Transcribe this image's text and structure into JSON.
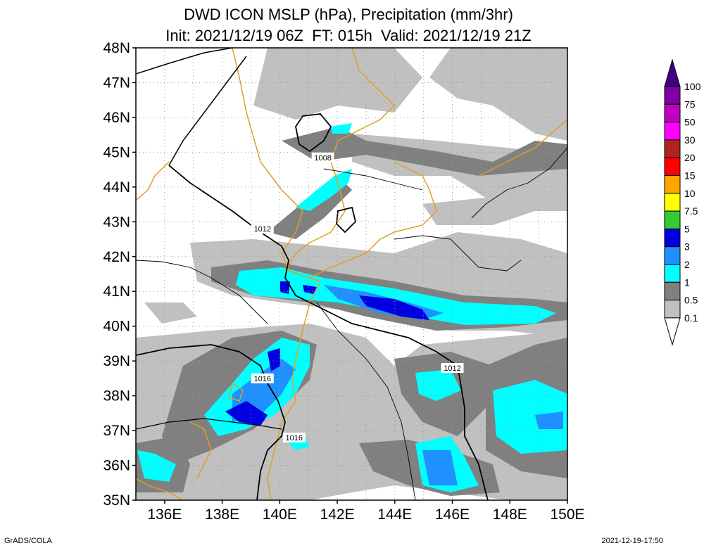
{
  "title": {
    "line1": "DWD ICON MSLP (hPa), Precipitation (mm/3hr)",
    "line2": "Init: 2021/12/19 06Z  FT: 015h  Valid: 2021/12/19 21Z"
  },
  "footer": {
    "left": "GrADS/COLA",
    "right": "2021-12-19-17:50"
  },
  "chart_data": {
    "type": "heatmap",
    "map_extent": {
      "lon": [
        135,
        150
      ],
      "lat": [
        35,
        48
      ]
    },
    "lat_ticks": [
      "35N",
      "36N",
      "37N",
      "38N",
      "39N",
      "40N",
      "41N",
      "42N",
      "43N",
      "44N",
      "45N",
      "46N",
      "47N",
      "48N"
    ],
    "lon_ticks": [
      "136E",
      "138E",
      "140E",
      "142E",
      "144E",
      "146E",
      "148E",
      "150E"
    ],
    "grid": true,
    "colorbar": {
      "labels": [
        "0.1",
        "0.5",
        "1",
        "2",
        "3",
        "5",
        "7.5",
        "10",
        "15",
        "20",
        "30",
        "50",
        "75",
        "100"
      ],
      "colors": [
        "#ffffff",
        "#c0c0c0",
        "#808080",
        "#00ffff",
        "#1e90ff",
        "#0000e0",
        "#32cd32",
        "#ffff00",
        "#ffa500",
        "#ff0000",
        "#b22222",
        "#ff00ff",
        "#c000c0",
        "#8000a0",
        "#400080"
      ]
    },
    "isobar_labels": [
      {
        "text": "1008",
        "lon": 141.5,
        "lat": 44.85
      },
      {
        "text": "1012",
        "lon": 139.4,
        "lat": 42.8
      },
      {
        "text": "1016",
        "lon": 139.4,
        "lat": 38.5
      },
      {
        "text": "1012",
        "lon": 146.0,
        "lat": 38.8
      },
      {
        "text": "1016",
        "lon": 140.5,
        "lat": 36.8
      }
    ]
  }
}
